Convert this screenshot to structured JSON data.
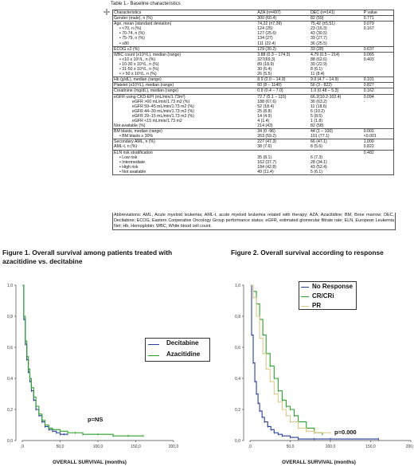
{
  "table": {
    "title": "Table 1.- Baseline characteristics",
    "rows": [
      {
        "c1": "Characteristics",
        "c2": "AZA (n=497)",
        "c3": "DEC (n=141)",
        "c4": "P value",
        "indent": 0,
        "sep": false
      },
      {
        "c1": "Gender (male), n (%)",
        "c2": "300 (60.4)",
        "c3": "82 (59)",
        "c4": "0.771",
        "indent": 0,
        "sep": true
      },
      {
        "c1": "Age, mean (standard deviation)",
        "c2": "74,22 (±7,39)",
        "c3": "75,42 (±5,51)",
        "c4": "0.079",
        "indent": 0,
        "sep": true
      },
      {
        "c1": "•   <70, n (%)",
        "c2": "124 (25)",
        "c3": "23 (16.3)",
        "c4": "0.167",
        "indent": 1,
        "sep": false
      },
      {
        "c1": "•   70-74, n (%)",
        "c2": "127 (25.6)",
        "c3": "43 (30.5)",
        "c4": "",
        "indent": 1,
        "sep": false
      },
      {
        "c1": "•   75-79, n (%)",
        "c2": "134 (27)",
        "c3": "39 (27.7)",
        "c4": "",
        "indent": 1,
        "sep": false
      },
      {
        "c1": "•   ≥80",
        "c2": "111 (22.4)",
        "c3": "36 (25.5)",
        "c4": "",
        "indent": 1,
        "sep": false
      },
      {
        "c1": "ECOG ≥2 (%)",
        "c2": "129 (30.2)",
        "c3": "33 (28)",
        "c4": "0.637",
        "indent": 0,
        "sep": true
      },
      {
        "c1": "WBC count (x10⁹/L), median (range)",
        "c2": "3.88 (0.3 – 174.3)",
        "c3": "4.79 (0.5 – 214)",
        "c4": "0.065",
        "indent": 0,
        "sep": true
      },
      {
        "c1": "•   <10 x 10⁹/L, n (%)",
        "c2": "327(69.3)",
        "c3": "88 (62.6)",
        "c4": "0.403",
        "indent": 1,
        "sep": false
      },
      {
        "c1": "•   10-30 x 10⁹/L, n (%)",
        "c2": "89 (18.9)",
        "c3": "30 (22.9)",
        "c4": "",
        "indent": 1,
        "sep": false
      },
      {
        "c1": "•   31-50 x 10⁹/L, n (%)",
        "c2": "30 (6.4)",
        "c3": "8 (6.1)",
        "c4": "",
        "indent": 1,
        "sep": false
      },
      {
        "c1": "•   > 50 x 10⁹/L, n (%)",
        "c2": "26 (5.5)",
        "c3": "11 (8.4)",
        "c4": "",
        "indent": 1,
        "sep": false
      },
      {
        "c1": "Hb (g/dL), median (range)",
        "c2": "8.9 (2.0 – 14.9)",
        "c3": "9.0 (4.7 – 14.9)",
        "c4": "0.101",
        "indent": 0,
        "sep": true
      },
      {
        "c1": "Platelet (x10⁹/L), median (range)",
        "c2": "60 (8 – 1140)",
        "c3": "56 (3 - 822)",
        "c4": "0.827",
        "indent": 0,
        "sep": true
      },
      {
        "c1": "Creatinine (mg/dL), median (range)",
        "c2": "0.9 (0.4 – 7.0)",
        "c3": "1.0 (0.48 – 5.3)",
        "c4": "0.162",
        "indent": 0,
        "sep": true
      },
      {
        "c1": "eGFR using CKD-EPI (mL/min/1.73m²)",
        "c2": "72.7 (5.1 – 115)",
        "c3": "66.2(10.2-102.4)",
        "c4": "0.094",
        "indent": 0,
        "sep": true
      },
      {
        "c1": "eGFR >60 mL/min/1.73 m2 (%)",
        "c2": "188 (67.6)",
        "c3": "36 (63.2)",
        "c4": "-",
        "indent": 2,
        "sep": false
      },
      {
        "c1": "eGFR 59–45 mL/min/1.73 m2 (%)",
        "c2": "52 (18.4)",
        "c3": "11 (18.6)",
        "c4": "",
        "indent": 2,
        "sep": false
      },
      {
        "c1": "eGFR 44–30 mL/min/1.73 m2 (%)",
        "c2": "25 (8.8)",
        "c3": "6 (10.2)",
        "c4": "",
        "indent": 2,
        "sep": false
      },
      {
        "c1": "eGFR 29–15 mL/min/1.73 m2 (%)",
        "c2": "14 (4.9)",
        "c3": "5 (8.5)",
        "c4": "",
        "indent": 2,
        "sep": false
      },
      {
        "c1": "eGFR <15 mL/min/1.73 m2",
        "c2": "4 (1.4)",
        "c3": "1 (1.8)",
        "c4": "",
        "indent": 2,
        "sep": false
      },
      {
        "c1": "Not available (%)",
        "c2": "214 (43)",
        "c3": "82 (58)",
        "c4": "",
        "indent": 0,
        "sep": false
      },
      {
        "c1": "BM blasts, median (range)",
        "c2": "34 (0 -96)",
        "c3": "44 (1 – 100)",
        "c4": "0.001",
        "indent": 0,
        "sep": true
      },
      {
        "c1": "•   BM blasts ≥ 30%",
        "c2": "263 (59.2)",
        "c3": "101 (77.1)",
        "c4": "<0.001",
        "indent": 1,
        "sep": false
      },
      {
        "c1": "Secondary AML, n (%)",
        "c2": "227 (47.3)",
        "c3": "66 (47.1)",
        "c4": "1.000",
        "indent": 0,
        "sep": true
      },
      {
        "c1": "AML-t, n (%)",
        "c2": "38 (7.6)",
        "c3": "8 (5.6)",
        "c4": "0.822",
        "indent": 0,
        "sep": false
      },
      {
        "c1": "ELN risk stratification",
        "c2": "",
        "c3": "",
        "c4": "0.482",
        "indent": 0,
        "sep": true
      },
      {
        "c1": "•   Low risk",
        "c2": "35 (8.1)",
        "c3": "6 (7.3)",
        "c4": "",
        "indent": 1,
        "sep": false
      },
      {
        "c1": "•   Intermediate",
        "c2": "162 (37.7)",
        "c3": "28 (34.1)",
        "c4": "",
        "indent": 1,
        "sep": false
      },
      {
        "c1": "•   High risk",
        "c2": "184 (42.8)",
        "c3": "43 (52.4)",
        "c4": "",
        "indent": 1,
        "sep": false
      },
      {
        "c1": "•   Not available",
        "c2": "49 (11.4)",
        "c3": "5 (6.1)",
        "c4": "",
        "indent": 1,
        "sep": false
      }
    ],
    "abbreviations": "Abbreviations: AML, Acute myeloid leukemia; AML-t, acute myeloid leukemia related with therapy; AZA, Azacitidine; BM, Bone marrow; DEC, Decitabine; ECOG, Eastern Cooperative Oncology Group performance status; eGFR, estimated glomerular filtrate rate; ELN, European Leukemia Net; Hb, Hemoglobin; WBC, White blood cell count."
  },
  "figure1": {
    "title": "Figure 1. Overall survival among patients treated with azacitidine vs. decitabine",
    "pvalue": "p=NS",
    "legend": [
      {
        "name": "Decitabine",
        "color": "#2b3f9c"
      },
      {
        "name": "Azacitidine",
        "color": "#2ca02c"
      }
    ]
  },
  "figure2": {
    "title": "Figure 2. Overall survival according to response",
    "pvalue": "p=0.000",
    "legend": [
      {
        "name": "No Response",
        "color": "#2b3f9c"
      },
      {
        "name": "CR/CRi",
        "color": "#2ca02c"
      },
      {
        "name": "PR",
        "color": "#d9c98a"
      }
    ]
  },
  "chart_data": [
    {
      "type": "line",
      "title": "",
      "xlabel": "OVERALL SURVIVAL (months)",
      "ylabel": "",
      "xlim": [
        0,
        200
      ],
      "ylim": [
        0,
        1
      ],
      "xticks": [
        "0",
        ",0",
        "50,0",
        "100,0",
        "150,0",
        "200,0"
      ],
      "yticks": [
        "1,0",
        "0,8",
        "0,6",
        "0,4",
        "0,2",
        "0,0"
      ],
      "series": [
        {
          "name": "Decitabine",
          "x": [
            0,
            2,
            4,
            6,
            8,
            10,
            12,
            15,
            18,
            22,
            26,
            30,
            35,
            40,
            45,
            50,
            55,
            60
          ],
          "y": [
            1.0,
            0.78,
            0.62,
            0.52,
            0.44,
            0.38,
            0.32,
            0.26,
            0.2,
            0.16,
            0.12,
            0.09,
            0.07,
            0.06,
            0.05,
            0.04,
            0.04,
            0.04
          ]
        },
        {
          "name": "Azacitidine",
          "x": [
            0,
            2,
            4,
            6,
            8,
            10,
            12,
            15,
            18,
            22,
            26,
            30,
            35,
            40,
            50,
            60,
            70,
            80,
            100,
            120,
            140,
            160
          ],
          "y": [
            1.0,
            0.8,
            0.64,
            0.54,
            0.46,
            0.4,
            0.34,
            0.28,
            0.22,
            0.17,
            0.13,
            0.1,
            0.08,
            0.07,
            0.06,
            0.05,
            0.05,
            0.04,
            0.04,
            0.03,
            0.03,
            0.03
          ]
        }
      ]
    },
    {
      "type": "line",
      "title": "",
      "xlabel": "OVERALL SURVIVAL (months)",
      "ylabel": "",
      "xlim": [
        0,
        200
      ],
      "ylim": [
        0,
        1
      ],
      "xticks": [
        ",0",
        "50,0",
        "100,0",
        "150,0",
        "200,0"
      ],
      "yticks": [
        "1,0",
        "0,8",
        "0,6",
        "0,4",
        "0,2",
        "0,0"
      ],
      "series": [
        {
          "name": "No Response",
          "x": [
            0,
            2,
            4,
            6,
            8,
            10,
            12,
            15,
            18,
            22,
            26,
            30,
            35,
            40,
            50,
            60,
            80,
            100,
            160
          ],
          "y": [
            1.0,
            0.68,
            0.5,
            0.38,
            0.3,
            0.24,
            0.19,
            0.15,
            0.12,
            0.09,
            0.07,
            0.05,
            0.04,
            0.03,
            0.02,
            0.01,
            0.01,
            0.01,
            0.01
          ]
        },
        {
          "name": "CR/CRi",
          "x": [
            0,
            4,
            8,
            12,
            16,
            20,
            25,
            30,
            35,
            40,
            45,
            50,
            55,
            60,
            70,
            80,
            90
          ],
          "y": [
            1.0,
            0.96,
            0.88,
            0.78,
            0.68,
            0.56,
            0.48,
            0.4,
            0.32,
            0.26,
            0.22,
            0.2,
            0.16,
            0.12,
            0.08,
            0.05,
            0.04
          ]
        },
        {
          "name": "PR",
          "x": [
            0,
            4,
            8,
            12,
            16,
            20,
            25,
            30,
            35,
            40,
            45,
            50,
            60,
            70,
            80,
            100
          ],
          "y": [
            1.0,
            0.92,
            0.8,
            0.66,
            0.56,
            0.46,
            0.38,
            0.3,
            0.25,
            0.2,
            0.16,
            0.12,
            0.08,
            0.06,
            0.05,
            0.05
          ]
        }
      ]
    }
  ]
}
